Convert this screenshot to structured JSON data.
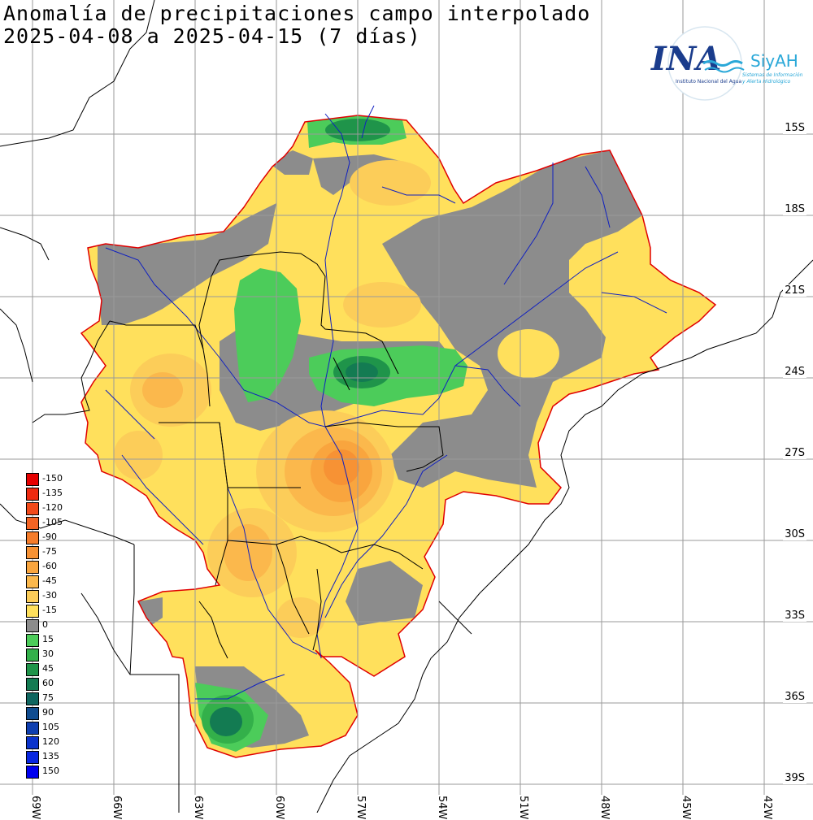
{
  "title": {
    "line1": "Anomalía de precipitaciones campo interpolado",
    "line2": "2025-04-08 a 2025-04-15 (7 días)"
  },
  "logo": {
    "ina": "INA",
    "siyah": "SiyAH",
    "institute": "Instituto Nacional del Agua",
    "system_line1": "Sistemas de Información",
    "system_line2": "y Alerta Hidrológico"
  },
  "lat_labels": [
    "15S",
    "18S",
    "21S",
    "24S",
    "27S",
    "30S",
    "33S",
    "36S",
    "39S"
  ],
  "lon_labels": [
    "69W",
    "66W",
    "63W",
    "60W",
    "57W",
    "54W",
    "51W",
    "48W",
    "45W",
    "42W"
  ],
  "legend": [
    {
      "label": "-150",
      "color": "#e60000"
    },
    {
      "label": "-135",
      "color": "#ee2a10"
    },
    {
      "label": "-120",
      "color": "#f24a1a"
    },
    {
      "label": "-105",
      "color": "#f46424"
    },
    {
      "label": "-90",
      "color": "#f57c2a"
    },
    {
      "label": "-75",
      "color": "#f79234"
    },
    {
      "label": "-60",
      "color": "#f9a53e"
    },
    {
      "label": "-45",
      "color": "#fbb84c"
    },
    {
      "label": "-30",
      "color": "#fccd59"
    },
    {
      "label": "-15",
      "color": "#ffe05c"
    },
    {
      "label": "0",
      "color": "#8c8c8c"
    },
    {
      "label": "15",
      "color": "#4ccc5a"
    },
    {
      "label": "30",
      "color": "#33b04a"
    },
    {
      "label": "45",
      "color": "#1f944a"
    },
    {
      "label": "60",
      "color": "#137b52"
    },
    {
      "label": "75",
      "color": "#0f6660"
    },
    {
      "label": "90",
      "color": "#104c90"
    },
    {
      "label": "105",
      "color": "#0f3fb0"
    },
    {
      "label": "120",
      "color": "#0b33cc"
    },
    {
      "label": "135",
      "color": "#0826e0"
    },
    {
      "label": "150",
      "color": "#0000f0"
    }
  ],
  "colors": {
    "basin_outline": "#e00000",
    "rivers": "#1020c0",
    "borders": "#000000",
    "grid": "#9a9a9a",
    "neutral_band": "#8c8c8c"
  }
}
